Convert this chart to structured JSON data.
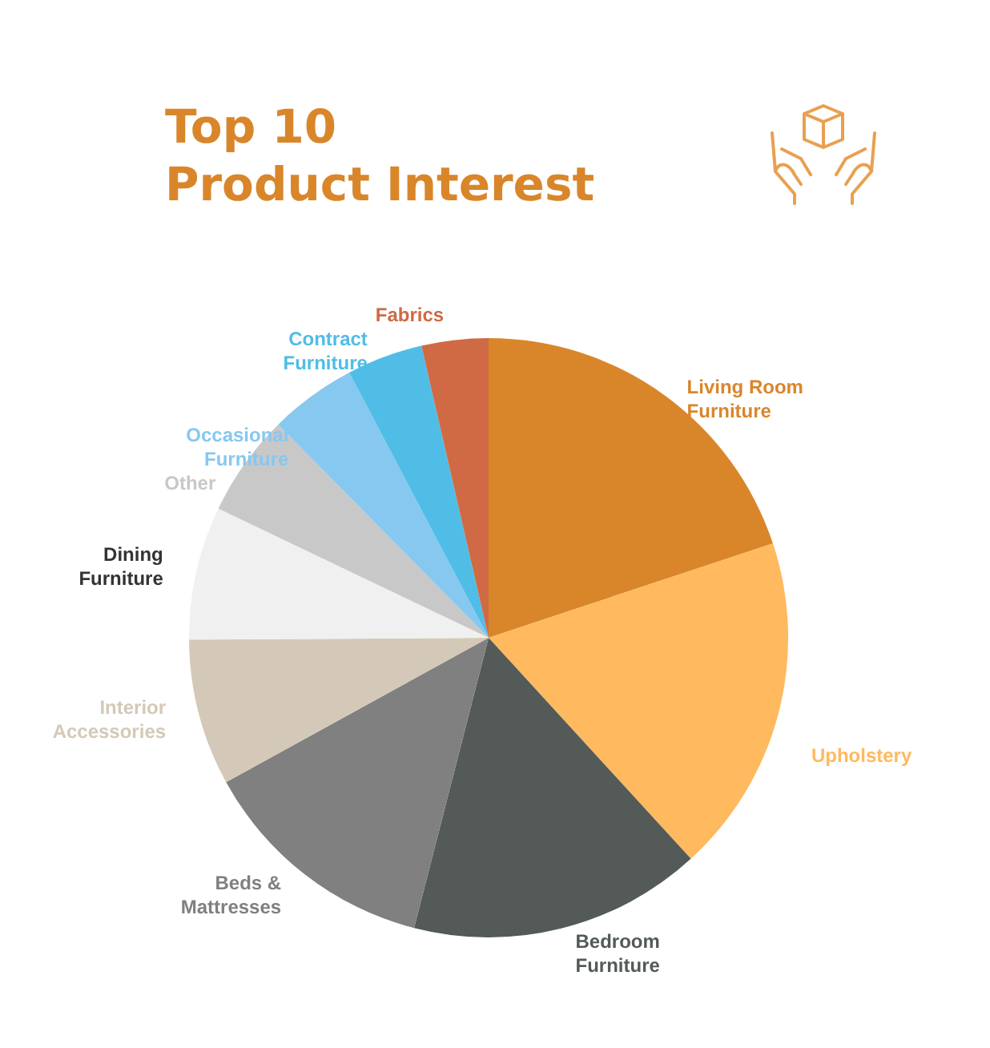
{
  "chart_data": {
    "type": "pie",
    "title": "Top 10\nProduct Interest",
    "categories": [
      "Living Room\nFurniture",
      "Upholstery",
      "Bedroom\nFurniture",
      "Beds &\nMattresses",
      "Interior\nAccessories",
      "Dining\nFurniture",
      "Other",
      "Occasional\nFurniture",
      "Contract\nFurniture",
      "Fabrics"
    ],
    "values": [
      19.9,
      18.3,
      15.8,
      13.0,
      7.9,
      7.2,
      5.5,
      4.7,
      4.1,
      3.6
    ],
    "colors": [
      "#d9862b",
      "#ffb95e",
      "#535a58",
      "#808080",
      "#d4c9b8",
      "#f0f0f0",
      "#c8c8c8",
      "#86c8f0",
      "#50bde6",
      "#cf6a45"
    ],
    "legend": false
  }
}
